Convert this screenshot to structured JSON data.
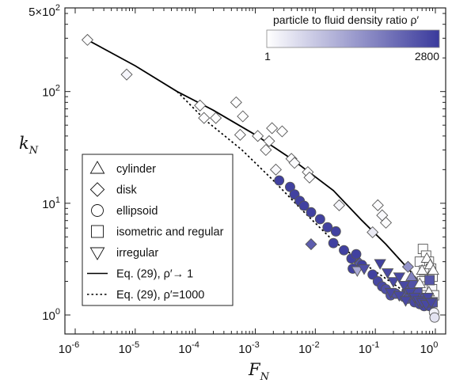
{
  "chart_data": {
    "type": "scatter",
    "xlabel": "F",
    "xlabel_sub": "N",
    "ylabel": "k",
    "ylabel_sub": "N",
    "x_scale": "log",
    "y_scale": "log",
    "xlim": [
      1e-06,
      1
    ],
    "ylim": [
      1,
      500
    ],
    "x_ticks": [
      {
        "value": 1e-06,
        "base": "10",
        "exp": "-6"
      },
      {
        "value": 1e-05,
        "base": "10",
        "exp": "-5"
      },
      {
        "value": 0.0001,
        "base": "10",
        "exp": "-4"
      },
      {
        "value": 0.001,
        "base": "10",
        "exp": "-3"
      },
      {
        "value": 0.01,
        "base": "10",
        "exp": "-2"
      },
      {
        "value": 0.1,
        "base": "10",
        "exp": "-1"
      },
      {
        "value": 1,
        "base": "10",
        "exp": "0"
      }
    ],
    "y_ticks": [
      {
        "value": 1,
        "base": "10",
        "exp": "0"
      },
      {
        "value": 10,
        "base": "10",
        "exp": "1"
      },
      {
        "value": 100,
        "base": "10",
        "exp": "2"
      },
      {
        "value": 500,
        "base": "5×10",
        "exp": "2"
      }
    ],
    "colorbar": {
      "label": "particle to fluid density ratio ρ′",
      "min_label": "1",
      "max_label": "2800",
      "min": 1,
      "max": 2800,
      "color_low": "#ffffff",
      "color_high": "#3a3a9c"
    },
    "legend": {
      "placement": "lower-left",
      "entries": [
        {
          "marker": "triangle-up",
          "label": "cylinder"
        },
        {
          "marker": "diamond",
          "label": "disk"
        },
        {
          "marker": "circle",
          "label": "ellipsoid"
        },
        {
          "marker": "square",
          "label": "isometric and regular"
        },
        {
          "marker": "triangle-down",
          "label": "irregular"
        },
        {
          "marker": "solid-line",
          "label": "Eq. (29),  ρ′→ 1"
        },
        {
          "marker": "dotted-line",
          "label": "Eq. (29),  ρ′=1000"
        }
      ]
    },
    "series": [
      {
        "marker": "diamond",
        "label": "disk",
        "points": [
          {
            "x": 1.6e-06,
            "y": 290,
            "rho": 50
          },
          {
            "x": 7.2e-06,
            "y": 142,
            "rho": 150
          },
          {
            "x": 0.00012,
            "y": 75,
            "rho": 30
          },
          {
            "x": 0.00014,
            "y": 58,
            "rho": 30
          },
          {
            "x": 0.00022,
            "y": 58,
            "rho": 20
          },
          {
            "x": 0.00048,
            "y": 80,
            "rho": 10
          },
          {
            "x": 0.00062,
            "y": 60,
            "rho": 20
          },
          {
            "x": 0.00056,
            "y": 41,
            "rho": 40
          },
          {
            "x": 0.0011,
            "y": 40,
            "rho": 30
          },
          {
            "x": 0.0015,
            "y": 30,
            "rho": 50
          },
          {
            "x": 0.0017,
            "y": 36,
            "rho": 30
          },
          {
            "x": 0.0019,
            "y": 47,
            "rho": 20
          },
          {
            "x": 0.0022,
            "y": 20,
            "rho": 80
          },
          {
            "x": 0.0028,
            "y": 44,
            "rho": 20
          },
          {
            "x": 0.004,
            "y": 25,
            "rho": 40
          },
          {
            "x": 0.0045,
            "y": 23,
            "rho": 60
          },
          {
            "x": 0.0075,
            "y": 19,
            "rho": 30
          },
          {
            "x": 0.008,
            "y": 17,
            "rho": 40
          },
          {
            "x": 0.025,
            "y": 9.6,
            "rho": 150
          },
          {
            "x": 0.045,
            "y": 3.3,
            "rho": 2200
          },
          {
            "x": 0.055,
            "y": 2.9,
            "rho": 2400
          },
          {
            "x": 0.11,
            "y": 9.6,
            "rho": 60
          },
          {
            "x": 0.13,
            "y": 7.8,
            "rho": 80
          },
          {
            "x": 0.15,
            "y": 6.7,
            "rho": 50
          },
          {
            "x": 0.09,
            "y": 5.5,
            "rho": 300
          },
          {
            "x": 0.0085,
            "y": 4.3,
            "rho": 2300
          },
          {
            "x": 0.35,
            "y": 2.7,
            "rho": 1500
          },
          {
            "x": 0.45,
            "y": 2.0,
            "rho": 2600
          }
        ]
      },
      {
        "marker": "circle",
        "label": "ellipsoid",
        "points": [
          {
            "x": 0.0025,
            "y": 16,
            "rho": 2700
          },
          {
            "x": 0.0038,
            "y": 14,
            "rho": 2700
          },
          {
            "x": 0.0045,
            "y": 12,
            "rho": 2700
          },
          {
            "x": 0.0055,
            "y": 10.5,
            "rho": 2700
          },
          {
            "x": 0.0065,
            "y": 9.5,
            "rho": 2700
          },
          {
            "x": 0.0085,
            "y": 8.3,
            "rho": 2700
          },
          {
            "x": 0.012,
            "y": 7.2,
            "rho": 2700
          },
          {
            "x": 0.016,
            "y": 6.1,
            "rho": 2700
          },
          {
            "x": 0.022,
            "y": 5.6,
            "rho": 2700
          },
          {
            "x": 0.02,
            "y": 4.4,
            "rho": 2700
          },
          {
            "x": 0.03,
            "y": 3.8,
            "rho": 2700
          },
          {
            "x": 0.04,
            "y": 3.2,
            "rho": 2700
          },
          {
            "x": 0.048,
            "y": 3.5,
            "rho": 2700
          },
          {
            "x": 0.042,
            "y": 2.6,
            "rho": 2700
          },
          {
            "x": 0.06,
            "y": 2.8,
            "rho": 2700
          },
          {
            "x": 0.09,
            "y": 2.3,
            "rho": 2700
          },
          {
            "x": 0.11,
            "y": 2.0,
            "rho": 2600
          },
          {
            "x": 0.13,
            "y": 1.8,
            "rho": 2600
          },
          {
            "x": 0.15,
            "y": 1.7,
            "rho": 2500
          },
          {
            "x": 0.18,
            "y": 1.5,
            "rho": 2500
          },
          {
            "x": 0.22,
            "y": 1.55,
            "rho": 2500
          },
          {
            "x": 0.3,
            "y": 1.45,
            "rho": 2400
          },
          {
            "x": 0.35,
            "y": 1.4,
            "rho": 2500
          },
          {
            "x": 0.45,
            "y": 1.3,
            "rho": 2600
          },
          {
            "x": 0.55,
            "y": 1.25,
            "rho": 2600
          },
          {
            "x": 0.65,
            "y": 1.2,
            "rho": 2600
          },
          {
            "x": 0.8,
            "y": 1.2,
            "rho": 2600
          },
          {
            "x": 0.95,
            "y": 1.05,
            "rho": 200
          },
          {
            "x": 0.97,
            "y": 0.95,
            "rho": 400
          }
        ]
      },
      {
        "marker": "square",
        "label": "isometric and regular",
        "points": [
          {
            "x": 0.62,
            "y": 3.9,
            "rho": 20
          },
          {
            "x": 0.7,
            "y": 3.4,
            "rho": 30
          },
          {
            "x": 0.78,
            "y": 3.0,
            "rho": 20
          },
          {
            "x": 0.55,
            "y": 3.0,
            "rho": 40
          },
          {
            "x": 0.85,
            "y": 2.6,
            "rho": 50
          },
          {
            "x": 0.65,
            "y": 2.5,
            "rho": 30
          },
          {
            "x": 0.9,
            "y": 2.2,
            "rho": 40
          },
          {
            "x": 0.6,
            "y": 2.0,
            "rho": 60
          },
          {
            "x": 0.7,
            "y": 1.8,
            "rho": 100
          },
          {
            "x": 0.88,
            "y": 1.7,
            "rho": 70
          },
          {
            "x": 0.95,
            "y": 1.5,
            "rho": 40
          },
          {
            "x": 0.72,
            "y": 1.5,
            "rho": 200
          },
          {
            "x": 0.9,
            "y": 1.3,
            "rho": 2500
          },
          {
            "x": 0.5,
            "y": 1.6,
            "rho": 2500
          },
          {
            "x": 0.42,
            "y": 1.9,
            "rho": 2500
          },
          {
            "x": 0.8,
            "y": 2.05,
            "rho": 2400
          }
        ]
      },
      {
        "marker": "triangle-up",
        "label": "cylinder",
        "points": [
          {
            "x": 0.72,
            "y": 3.2,
            "rho": 30
          },
          {
            "x": 0.82,
            "y": 2.8,
            "rho": 40
          },
          {
            "x": 0.92,
            "y": 2.5,
            "rho": 30
          },
          {
            "x": 0.6,
            "y": 2.5,
            "rho": 60
          },
          {
            "x": 0.55,
            "y": 1.9,
            "rho": 100
          },
          {
            "x": 0.78,
            "y": 1.6,
            "rho": 120
          },
          {
            "x": 0.4,
            "y": 2.2,
            "rho": 1800
          },
          {
            "x": 0.33,
            "y": 1.7,
            "rho": 2500
          },
          {
            "x": 0.6,
            "y": 1.4,
            "rho": 2500
          }
        ]
      },
      {
        "marker": "triangle-down",
        "label": "irregular",
        "points": [
          {
            "x": 0.05,
            "y": 2.5,
            "rho": 1200
          },
          {
            "x": 0.065,
            "y": 2.6,
            "rho": 2500
          },
          {
            "x": 0.12,
            "y": 2.9,
            "rho": 2700
          },
          {
            "x": 0.16,
            "y": 2.4,
            "rho": 2600
          },
          {
            "x": 0.2,
            "y": 2.0,
            "rho": 2600
          },
          {
            "x": 0.25,
            "y": 2.2,
            "rho": 2600
          },
          {
            "x": 0.3,
            "y": 1.85,
            "rho": 2600
          },
          {
            "x": 0.38,
            "y": 1.6,
            "rho": 2600
          },
          {
            "x": 0.45,
            "y": 1.45,
            "rho": 2600
          },
          {
            "x": 0.52,
            "y": 1.35,
            "rho": 2600
          },
          {
            "x": 0.6,
            "y": 1.3,
            "rho": 2600
          },
          {
            "x": 0.7,
            "y": 1.25,
            "rho": 2600
          },
          {
            "x": 0.75,
            "y": 1.45,
            "rho": 2600
          },
          {
            "x": 0.85,
            "y": 1.3,
            "rho": 2600
          },
          {
            "x": 0.18,
            "y": 1.6,
            "rho": 2600
          },
          {
            "x": 0.25,
            "y": 1.5,
            "rho": 2600
          },
          {
            "x": 0.32,
            "y": 1.35,
            "rho": 2600
          }
        ]
      }
    ],
    "lines": [
      {
        "label": "Eq. (29),  ρ′→ 1",
        "style": "solid",
        "points": [
          {
            "x": 1.6e-06,
            "y": 290
          },
          {
            "x": 1e-05,
            "y": 170
          },
          {
            "x": 5e-05,
            "y": 100
          },
          {
            "x": 0.0002,
            "y": 68
          },
          {
            "x": 0.001,
            "y": 41
          },
          {
            "x": 0.004,
            "y": 25
          },
          {
            "x": 0.02,
            "y": 13
          },
          {
            "x": 0.06,
            "y": 7
          },
          {
            "x": 0.15,
            "y": 4.3
          },
          {
            "x": 0.4,
            "y": 2.4
          },
          {
            "x": 1,
            "y": 1.1
          }
        ]
      },
      {
        "label": "Eq. (29),  ρ′=1000",
        "style": "dotted",
        "points": [
          {
            "x": 5e-05,
            "y": 100
          },
          {
            "x": 0.00015,
            "y": 55
          },
          {
            "x": 0.0006,
            "y": 30
          },
          {
            "x": 0.002,
            "y": 16
          },
          {
            "x": 0.006,
            "y": 8.7
          },
          {
            "x": 0.02,
            "y": 4.6
          },
          {
            "x": 0.07,
            "y": 2.8
          },
          {
            "x": 0.2,
            "y": 1.9
          },
          {
            "x": 0.5,
            "y": 1.35
          },
          {
            "x": 1,
            "y": 1.05
          }
        ]
      }
    ]
  }
}
